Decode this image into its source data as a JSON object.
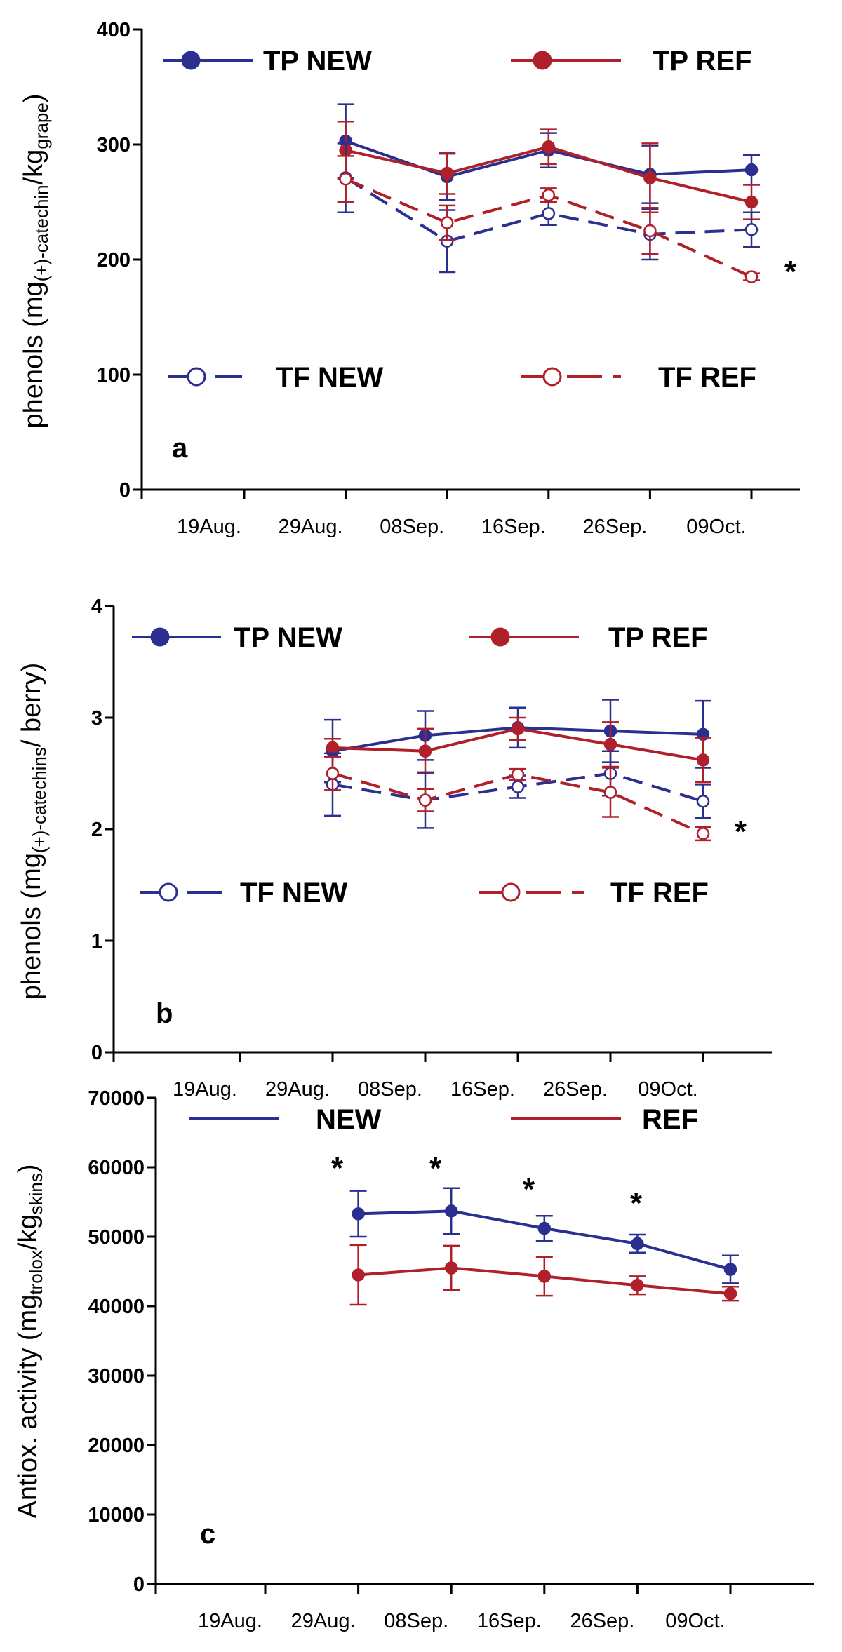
{
  "chart_data": [
    {
      "type": "line",
      "panel": "a",
      "ylabel": [
        "phenols (mg",
        "(+)-catechin",
        "/kg",
        "grape",
        ")"
      ],
      "categories": [
        "19Aug.",
        "29Aug.",
        "08Sep.",
        "16Sep.",
        "26Sep.",
        "09Oct."
      ],
      "ylim": [
        0,
        400
      ],
      "yticks": [
        0,
        100,
        200,
        300,
        400
      ],
      "annotations": [
        "*"
      ],
      "series": [
        {
          "name": "TP NEW",
          "color": "#2b2f8f",
          "line_style": "solid",
          "marker": "filled",
          "values": [
            null,
            303,
            272,
            295,
            274,
            278
          ],
          "errors": [
            null,
            32,
            20,
            15,
            25,
            13
          ]
        },
        {
          "name": "TP REF",
          "color": "#b0202a",
          "line_style": "solid",
          "marker": "filled",
          "values": [
            null,
            295,
            275,
            298,
            271,
            250
          ],
          "errors": [
            null,
            25,
            18,
            15,
            30,
            15
          ]
        },
        {
          "name": "TF NEW",
          "color": "#2b2f8f",
          "line_style": "dashed",
          "marker": "open",
          "values": [
            null,
            271,
            216,
            240,
            222,
            226
          ],
          "errors": [
            null,
            30,
            27,
            10,
            22,
            15
          ]
        },
        {
          "name": "TF REF",
          "color": "#b0202a",
          "line_style": "dashed",
          "marker": "open",
          "values": [
            null,
            270,
            232,
            256,
            225,
            185
          ],
          "errors": [
            null,
            20,
            15,
            6,
            20,
            3
          ]
        }
      ]
    },
    {
      "type": "line",
      "panel": "b",
      "ylabel": [
        "phenols (mg",
        "(+)-catechins",
        "/ berry)"
      ],
      "categories": [
        "19Aug.",
        "29Aug.",
        "08Sep.",
        "16Sep.",
        "26Sep.",
        "09Oct."
      ],
      "ylim": [
        0,
        4
      ],
      "yticks": [
        0,
        1,
        2,
        3,
        4
      ],
      "annotations": [
        "*"
      ],
      "series": [
        {
          "name": "TP NEW",
          "color": "#2b2f8f",
          "line_style": "solid",
          "marker": "filled",
          "values": [
            null,
            2.7,
            2.84,
            2.91,
            2.88,
            2.85
          ],
          "errors": [
            null,
            0.28,
            0.22,
            0.18,
            0.28,
            0.3
          ]
        },
        {
          "name": "TP REF",
          "color": "#b0202a",
          "line_style": "solid",
          "marker": "filled",
          "values": [
            null,
            2.73,
            2.7,
            2.9,
            2.76,
            2.62
          ],
          "errors": [
            null,
            0.08,
            0.2,
            0.1,
            0.2,
            0.2
          ]
        },
        {
          "name": "TF NEW",
          "color": "#2b2f8f",
          "line_style": "dashed",
          "marker": "open",
          "values": [
            null,
            2.4,
            2.26,
            2.38,
            2.5,
            2.25
          ],
          "errors": [
            null,
            0.28,
            0.25,
            0.1,
            0.2,
            0.15
          ]
        },
        {
          "name": "TF REF",
          "color": "#b0202a",
          "line_style": "dashed",
          "marker": "open",
          "values": [
            null,
            2.5,
            2.26,
            2.49,
            2.33,
            1.96
          ],
          "errors": [
            null,
            0.15,
            0.1,
            0.05,
            0.22,
            0.06
          ]
        }
      ]
    },
    {
      "type": "line",
      "panel": "c",
      "ylabel": [
        "Antiox. activity (mg",
        "trolox",
        "/kg",
        "skins",
        ")"
      ],
      "categories": [
        "19Aug.",
        "29Aug.",
        "08Sep.",
        "16Sep.",
        "26Sep.",
        "09Oct."
      ],
      "ylim": [
        0,
        70000
      ],
      "yticks": [
        0,
        10000,
        20000,
        30000,
        40000,
        50000,
        60000,
        70000
      ],
      "annotations": [
        "*",
        "*",
        "*",
        "*"
      ],
      "series": [
        {
          "name": "NEW",
          "color": "#2b2f8f",
          "line_style": "solid",
          "marker": "filled",
          "values": [
            null,
            53300,
            53700,
            51200,
            49000,
            45300
          ],
          "errors": [
            null,
            3300,
            3300,
            1800,
            1300,
            2000
          ]
        },
        {
          "name": "REF",
          "color": "#b0202a",
          "line_style": "solid",
          "marker": "filled",
          "values": [
            null,
            44500,
            45500,
            44300,
            43000,
            41800
          ],
          "errors": [
            null,
            4300,
            3200,
            2800,
            1300,
            1000
          ]
        }
      ]
    }
  ]
}
